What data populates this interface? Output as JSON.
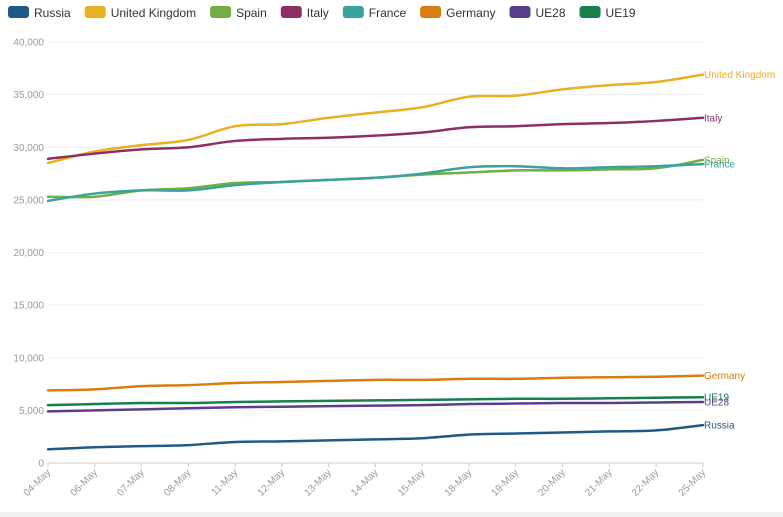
{
  "colors": {
    "Russia": "#1f5a87",
    "United Kingdom": "#e8b023",
    "Spain": "#72ad45",
    "Italy": "#8e2f63",
    "France": "#3aa39d",
    "Germany": "#d97c12",
    "UE28": "#5a3d8f",
    "UE19": "#177f4c"
  },
  "chart_data": {
    "type": "line",
    "title": "",
    "xlabel": "",
    "ylabel": "",
    "ylim": [
      0,
      40000
    ],
    "yticks": [
      "0",
      "5,000",
      "10,000",
      "15,000",
      "20,000",
      "25,000",
      "30,000",
      "35,000",
      "40,000"
    ],
    "grid": true,
    "legend_position": "top-left",
    "categories": [
      "04-May",
      "06-May",
      "07-May",
      "08-May",
      "11-May",
      "12-May",
      "13-May",
      "14-May",
      "15-May",
      "18-May",
      "19-May",
      "20-May",
      "21-May",
      "22-May",
      "25-May"
    ],
    "series": [
      {
        "name": "Russia",
        "end_label": "Russia",
        "values": [
          1300,
          1500,
          1600,
          1700,
          2000,
          2050,
          2150,
          2250,
          2350,
          2700,
          2800,
          2900,
          3000,
          3100,
          3600
        ]
      },
      {
        "name": "United Kingdom",
        "end_label": "United Kingdom",
        "values": [
          28500,
          29600,
          30200,
          30700,
          32000,
          32200,
          32800,
          33300,
          33800,
          34800,
          34900,
          35500,
          35900,
          36200,
          36900
        ]
      },
      {
        "name": "Spain",
        "end_label": "Spain",
        "values": [
          25300,
          25300,
          25900,
          26100,
          26600,
          26700,
          26900,
          27100,
          27400,
          27600,
          27800,
          27800,
          27900,
          28000,
          28800
        ]
      },
      {
        "name": "Italy",
        "end_label": "Italy",
        "values": [
          28900,
          29400,
          29800,
          30000,
          30600,
          30800,
          30900,
          31100,
          31400,
          31900,
          32000,
          32200,
          32300,
          32500,
          32800
        ]
      },
      {
        "name": "France",
        "end_label": "France",
        "values": [
          24900,
          25600,
          25900,
          25900,
          26400,
          26700,
          26900,
          27100,
          27500,
          28100,
          28200,
          28000,
          28100,
          28200,
          28400
        ]
      },
      {
        "name": "Germany",
        "end_label": "Germany",
        "values": [
          6900,
          7000,
          7300,
          7400,
          7600,
          7700,
          7800,
          7900,
          7900,
          8000,
          8000,
          8100,
          8150,
          8200,
          8300
        ]
      },
      {
        "name": "UE28",
        "end_label": "UE28",
        "values": [
          4900,
          5000,
          5100,
          5200,
          5300,
          5350,
          5400,
          5450,
          5500,
          5600,
          5650,
          5700,
          5700,
          5750,
          5800
        ]
      },
      {
        "name": "UE19",
        "end_label": "UE19",
        "values": [
          5500,
          5600,
          5700,
          5700,
          5800,
          5850,
          5900,
          5950,
          6000,
          6050,
          6100,
          6100,
          6150,
          6200,
          6250
        ]
      }
    ]
  }
}
